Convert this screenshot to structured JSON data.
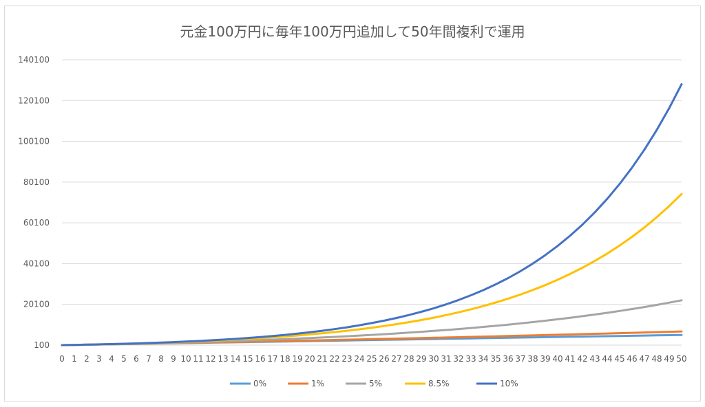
{
  "chart_data": {
    "type": "line",
    "title": "元金100万円に毎年100万円追加して50年間複利で運用",
    "xlabel": "",
    "ylabel": "",
    "x": [
      0,
      1,
      2,
      3,
      4,
      5,
      6,
      7,
      8,
      9,
      10,
      11,
      12,
      13,
      14,
      15,
      16,
      17,
      18,
      19,
      20,
      21,
      22,
      23,
      24,
      25,
      26,
      27,
      28,
      29,
      30,
      31,
      32,
      33,
      34,
      35,
      36,
      37,
      38,
      39,
      40,
      41,
      42,
      43,
      44,
      45,
      46,
      47,
      48,
      49,
      50
    ],
    "yticks": [
      100,
      20100,
      40100,
      60100,
      80100,
      100100,
      120100,
      140100
    ],
    "ylim": [
      100,
      140100
    ],
    "grid": true,
    "legend_position": "bottom",
    "series": [
      {
        "name": "0%",
        "color": "#5B9BD5",
        "values": [
          100,
          200,
          300,
          400,
          500,
          600,
          700,
          800,
          900,
          1000,
          1100,
          1200,
          1300,
          1400,
          1500,
          1600,
          1700,
          1800,
          1900,
          2000,
          2100,
          2200,
          2300,
          2400,
          2500,
          2600,
          2700,
          2800,
          2900,
          3000,
          3100,
          3200,
          3300,
          3400,
          3500,
          3600,
          3700,
          3800,
          3900,
          4000,
          4100,
          4200,
          4300,
          4400,
          4500,
          4600,
          4700,
          4800,
          4900,
          5000,
          5100
        ]
      },
      {
        "name": "1%",
        "color": "#ED7D31",
        "values": [
          100,
          201,
          304,
          408,
          513,
          620,
          728,
          837,
          947,
          1059,
          1172,
          1286,
          1401,
          1518,
          1636,
          1755,
          1876,
          1998,
          2121,
          2245,
          2371,
          2498,
          2627,
          2757,
          2888,
          3020,
          3154,
          3290,
          3427,
          3565,
          3704,
          3845,
          3988,
          4132,
          4277,
          4424,
          4572,
          4722,
          4873,
          5026,
          5180,
          5335,
          5492,
          5651,
          5811,
          5973,
          6136,
          6301,
          6467,
          6635,
          6804
        ]
      },
      {
        "name": "5%",
        "color": "#A5A5A5",
        "values": [
          100,
          205,
          315,
          431,
          553,
          680,
          814,
          955,
          1103,
          1258,
          1421,
          1592,
          1772,
          1960,
          2158,
          2366,
          2584,
          2813,
          3054,
          3307,
          3572,
          3851,
          4143,
          4450,
          4773,
          5111,
          5467,
          5840,
          6232,
          6644,
          7076,
          7530,
          8006,
          8507,
          9032,
          9584,
          10163,
          10771,
          11410,
          12080,
          12784,
          13524,
          14300,
          15115,
          15971,
          16870,
          17813,
          18804,
          19844,
          20936,
          22083
        ]
      },
      {
        "name": "8.5%",
        "color": "#FFC000",
        "values": [
          100,
          209,
          326,
          454,
          593,
          743,
          906,
          1083,
          1275,
          1484,
          1710,
          1955,
          2221,
          2510,
          2823,
          3163,
          3532,
          3932,
          4366,
          4837,
          5348,
          5903,
          6504,
          7157,
          7866,
          8634,
          9468,
          10373,
          11355,
          12420,
          13576,
          14830,
          16190,
          17666,
          19268,
          21006,
          22892,
          24938,
          27157,
          29566,
          32179,
          35014,
          38090,
          41428,
          45049,
          48978,
          53241,
          57866,
          62885,
          68330,
          74238
        ]
      },
      {
        "name": "10%",
        "color": "#4472C4",
        "values": [
          100,
          210,
          331,
          464,
          611,
          772,
          949,
          1144,
          1358,
          1594,
          1853,
          2138,
          2452,
          2797,
          3177,
          3595,
          4054,
          4560,
          5116,
          5727,
          6400,
          7140,
          7954,
          8850,
          9835,
          10918,
          12110,
          13421,
          14863,
          16449,
          18194,
          20114,
          22225,
          24548,
          27102,
          29912,
          33004,
          36404,
          40144,
          44259,
          48785,
          53763,
          59240,
          65264,
          71890,
          79179,
          87197,
          96017,
          105718,
          116390,
          128129
        ]
      }
    ]
  }
}
